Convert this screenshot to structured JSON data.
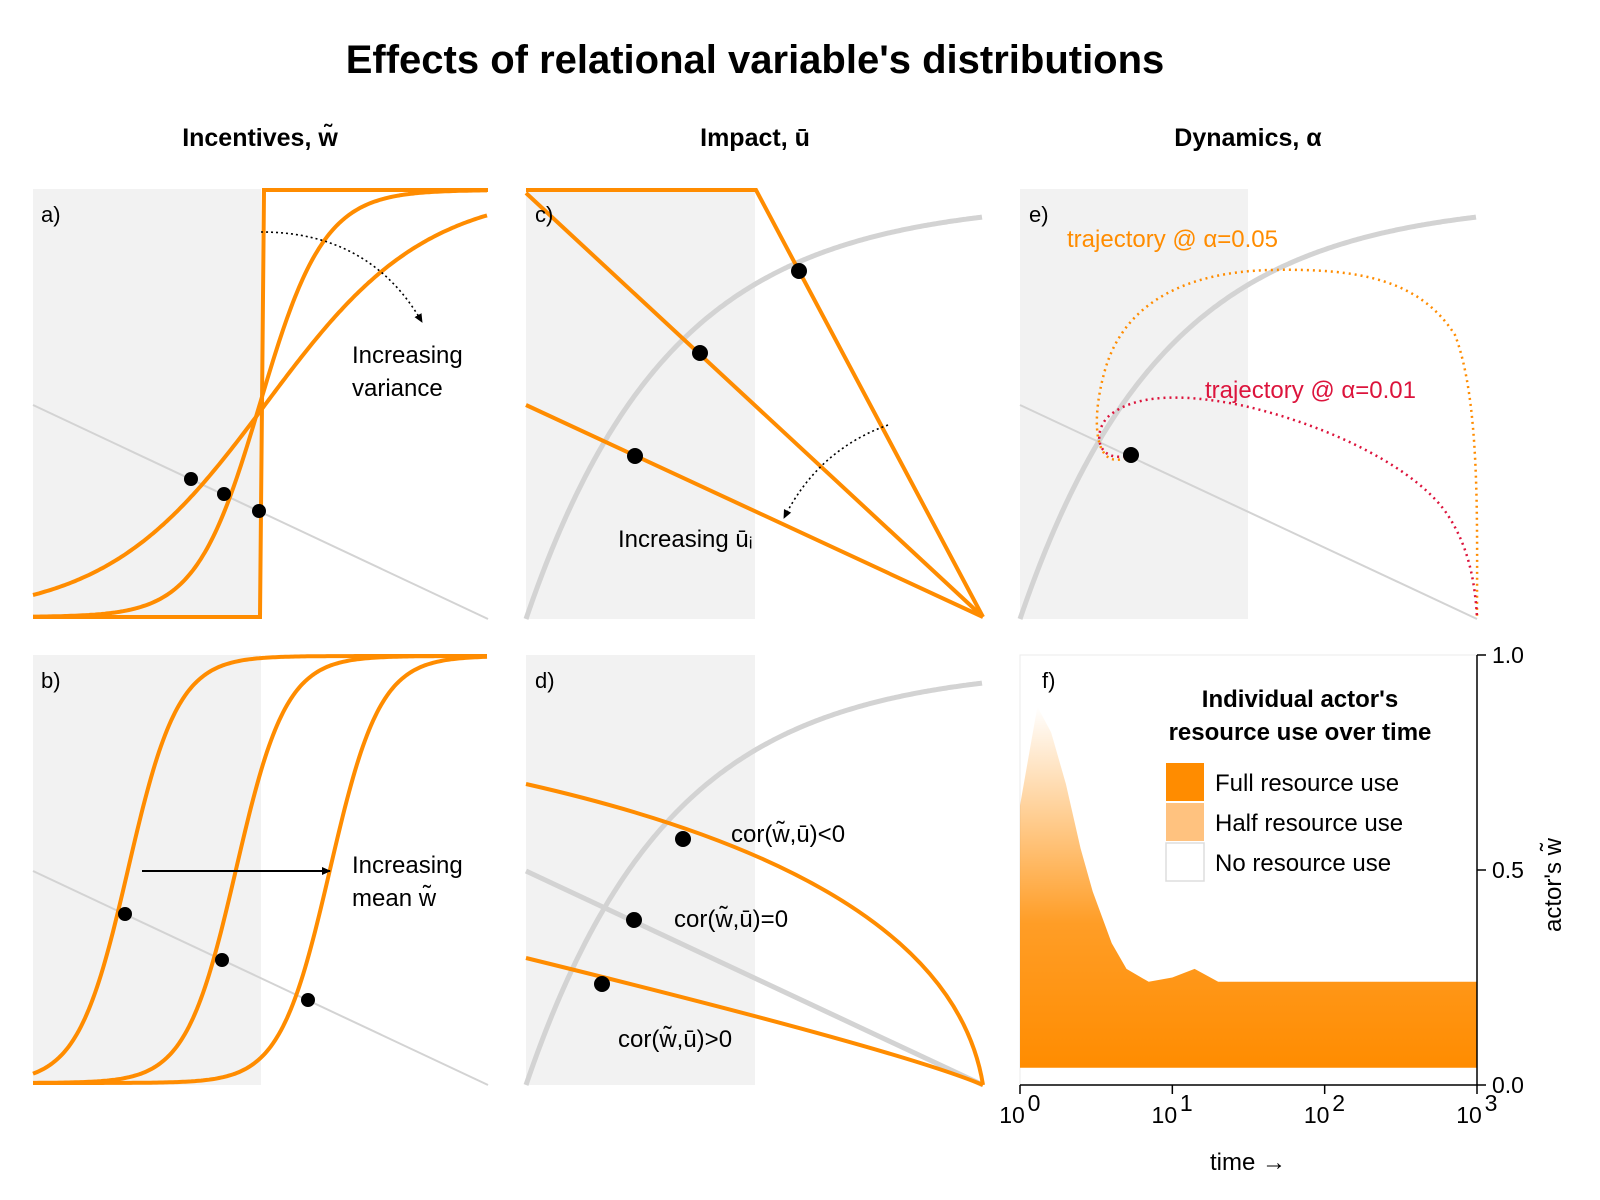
{
  "title": "Effects of relational variable's distributions",
  "column_titles": [
    "Incentives, w̃",
    "Impact, ū",
    "Dynamics, α"
  ],
  "colors": {
    "orange": "#ff8c00",
    "light_orange": "#ffc27f",
    "crimson": "#dc143c",
    "gray_line": "#d3d3d3",
    "gray_curve": "#d3d3d3",
    "shade": "#f2f2f2",
    "dot": "#000000"
  },
  "panels": {
    "a": {
      "letter": "a)",
      "annotation": [
        "Increasing",
        "variance"
      ]
    },
    "b": {
      "letter": "b)",
      "annotation": [
        "Increasing",
        "mean w̃"
      ]
    },
    "c": {
      "letter": "c)",
      "annotation": "Increasing ūᵢ"
    },
    "d": {
      "letter": "d)",
      "labels": [
        "cor(w̃,ū)<0",
        "cor(w̃,ū)=0",
        "cor(w̃,ū)>0"
      ]
    },
    "e": {
      "letter": "e)",
      "labels": [
        "trajectory @ α=0.05",
        "trajectory @ α=0.01"
      ]
    },
    "f": {
      "letter": "f)"
    }
  },
  "chart_data": [
    {
      "panel": "f",
      "type": "area",
      "title": "Individual actor's resource use over time",
      "xlabel": "time  →",
      "ylabel": "actor's w̃",
      "xscale": "log",
      "xlim": [
        1,
        1000
      ],
      "ylim": [
        0,
        1
      ],
      "xticks": [
        1,
        10,
        100,
        1000
      ],
      "xtick_labels": [
        {
          "base": "10",
          "exp": "0"
        },
        {
          "base": "10",
          "exp": "1"
        },
        {
          "base": "10",
          "exp": "2"
        },
        {
          "base": "10",
          "exp": "3"
        }
      ],
      "yticks": [
        0,
        0.5,
        1
      ],
      "ytick_labels": [
        "0.0",
        "0.5",
        "1.0"
      ],
      "legend": [
        {
          "label": "Full resource use",
          "color": "#ff8c00"
        },
        {
          "label": "Half resource use",
          "color": "#ffc27f"
        },
        {
          "label": "No resource use",
          "color": "#ffffff"
        }
      ],
      "legend_position": "top-right",
      "band": {
        "time": [
          1,
          1.3,
          1.6,
          2,
          2.5,
          3,
          4,
          5,
          7,
          10,
          14,
          20,
          30,
          50,
          100,
          1000
        ],
        "lower": [
          0.04,
          0.04,
          0.04,
          0.04,
          0.04,
          0.04,
          0.04,
          0.04,
          0.04,
          0.04,
          0.04,
          0.04,
          0.04,
          0.04,
          0.04,
          0.04
        ],
        "upper": [
          0.65,
          0.88,
          0.82,
          0.7,
          0.55,
          0.45,
          0.33,
          0.27,
          0.24,
          0.25,
          0.27,
          0.24,
          0.24,
          0.24,
          0.24,
          0.24
        ]
      }
    }
  ]
}
